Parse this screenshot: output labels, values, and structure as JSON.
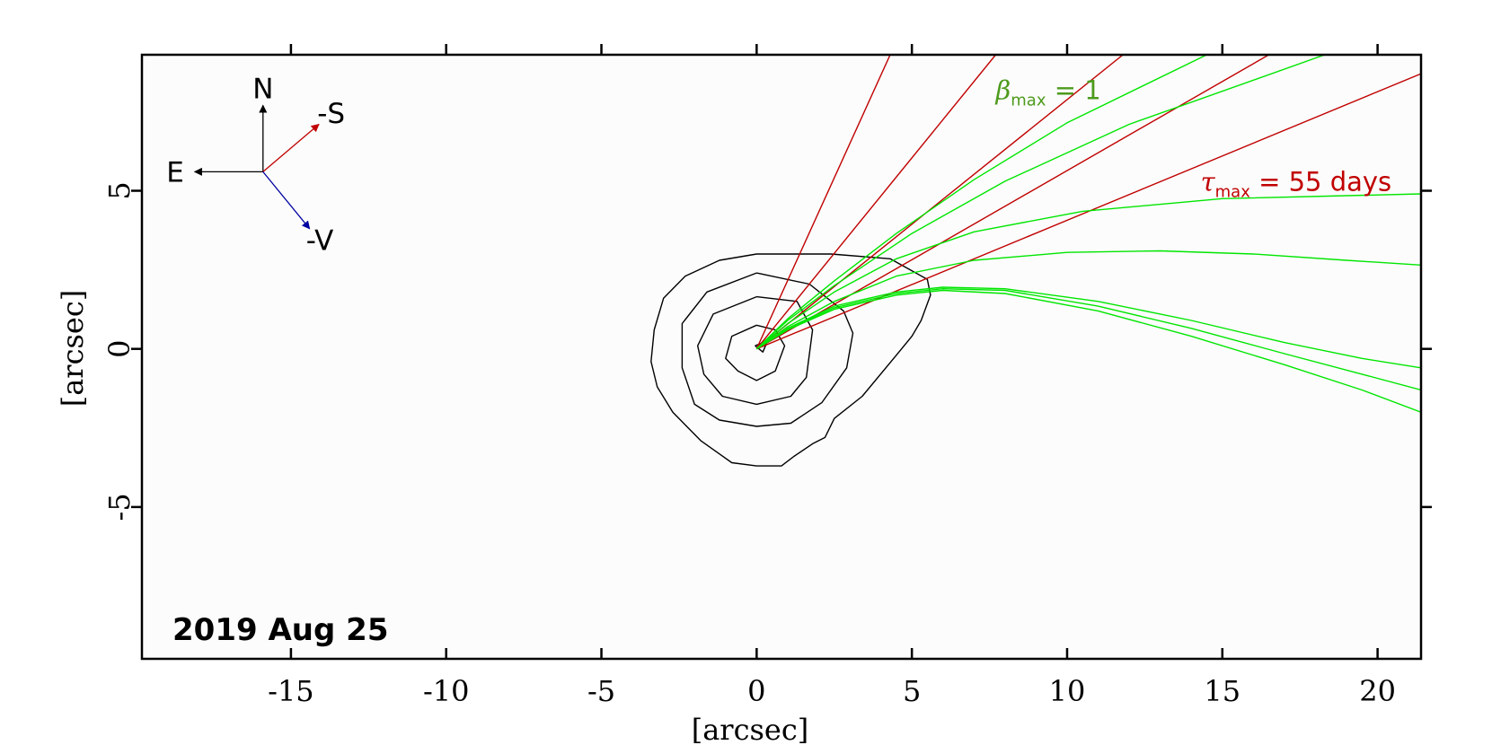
{
  "chart_data": {
    "type": "line",
    "xlabel": "[arcsec]",
    "ylabel": "[arcsec]",
    "xlim": [
      -19.8,
      21.4
    ],
    "ylim": [
      -9.8,
      9.3
    ],
    "x_ticks": [
      -15,
      -10,
      -5,
      0,
      5,
      10,
      15,
      20
    ],
    "y_ticks": [
      -5,
      0,
      5
    ],
    "x_tick_labels": [
      "-15",
      "-10",
      "-5",
      "0",
      "5",
      "10",
      "15",
      "20"
    ],
    "y_tick_labels": [
      "-5",
      "0",
      "5"
    ],
    "date_label": "2019 Aug 25",
    "grid": false,
    "compass": {
      "origin": [
        -15.9,
        5.6
      ],
      "arrows": [
        {
          "label": "N",
          "dx": 0,
          "dy": 2.1,
          "color": "#000000"
        },
        {
          "label": "E",
          "dx": -2.2,
          "dy": 0,
          "color": "#000000"
        },
        {
          "label": "-S",
          "dx": 1.8,
          "dy": 1.5,
          "color": "#c00000"
        },
        {
          "label": "-V",
          "dx": 1.5,
          "dy": -1.8,
          "color": "#0000a0"
        }
      ]
    },
    "annotations": {
      "beta": {
        "symbol": "β",
        "sub": "max",
        "text": "= 1",
        "color": "#4d9a1c",
        "x": 7.7,
        "y": 7.9
      },
      "tau": {
        "symbol": "τ",
        "sub": "max",
        "text": "= 55 days",
        "color": "#c00000",
        "x": 14.3,
        "y": 5.0
      }
    },
    "contours": [
      {
        "level": 1,
        "points": [
          [
            -0.05,
            0.1
          ],
          [
            0.35,
            0.25
          ],
          [
            0.2,
            -0.1
          ],
          [
            -0.05,
            0.1
          ]
        ]
      },
      {
        "level": 2,
        "points": [
          [
            0,
            0.75
          ],
          [
            0.6,
            0.6
          ],
          [
            0.9,
            0.1
          ],
          [
            0.6,
            -0.7
          ],
          [
            0,
            -1.0
          ],
          [
            -0.6,
            -0.7
          ],
          [
            -1.0,
            -0.3
          ],
          [
            -0.8,
            0.4
          ],
          [
            0,
            0.75
          ]
        ]
      },
      {
        "level": 3,
        "points": [
          [
            0,
            1.65
          ],
          [
            1.3,
            1.5
          ],
          [
            1.8,
            0.6
          ],
          [
            1.6,
            -0.9
          ],
          [
            1.1,
            -1.5
          ],
          [
            0,
            -1.75
          ],
          [
            -1.1,
            -1.5
          ],
          [
            -1.7,
            -0.8
          ],
          [
            -1.9,
            0.1
          ],
          [
            -1.4,
            1.1
          ],
          [
            0,
            1.65
          ]
        ]
      },
      {
        "level": 4,
        "points": [
          [
            0,
            2.4
          ],
          [
            1.7,
            2.05
          ],
          [
            2.8,
            1.2
          ],
          [
            3.1,
            0.5
          ],
          [
            2.9,
            -0.6
          ],
          [
            2.1,
            -1.7
          ],
          [
            1.1,
            -2.35
          ],
          [
            0,
            -2.45
          ],
          [
            -1.2,
            -2.25
          ],
          [
            -2.0,
            -1.75
          ],
          [
            -2.4,
            -0.6
          ],
          [
            -2.4,
            0.8
          ],
          [
            -1.6,
            1.8
          ],
          [
            0,
            2.4
          ]
        ]
      },
      {
        "level": 5,
        "points": [
          [
            0,
            3.0
          ],
          [
            2.4,
            3.0
          ],
          [
            4.3,
            2.85
          ],
          [
            5.5,
            2.2
          ],
          [
            5.6,
            1.7
          ],
          [
            5.3,
            0.9
          ],
          [
            5.0,
            0.4
          ],
          [
            4.5,
            -0.2
          ],
          [
            3.4,
            -1.5
          ],
          [
            2.5,
            -2.2
          ],
          [
            2.2,
            -2.8
          ],
          [
            1.8,
            -3.0
          ],
          [
            1.2,
            -3.4
          ],
          [
            0.8,
            -3.7
          ],
          [
            0,
            -3.7
          ],
          [
            -0.8,
            -3.6
          ],
          [
            -1.8,
            -2.9
          ],
          [
            -2.7,
            -2.0
          ],
          [
            -3.2,
            -1.2
          ],
          [
            -3.4,
            -0.4
          ],
          [
            -3.3,
            0.6
          ],
          [
            -3.0,
            1.6
          ],
          [
            -2.3,
            2.3
          ],
          [
            -1.2,
            2.8
          ],
          [
            0,
            3.0
          ]
        ]
      }
    ],
    "series": [
      {
        "kind": "synchrone",
        "color": "#c00000",
        "x": [
          0,
          4.3
        ],
        "y": [
          0,
          9.3
        ]
      },
      {
        "kind": "synchrone",
        "color": "#c00000",
        "x": [
          0,
          7.7
        ],
        "y": [
          0,
          9.3
        ]
      },
      {
        "kind": "synchrone",
        "color": "#c00000",
        "x": [
          0,
          11.8
        ],
        "y": [
          0,
          9.3
        ]
      },
      {
        "kind": "synchrone",
        "color": "#c00000",
        "x": [
          0,
          16.5
        ],
        "y": [
          0,
          9.3
        ]
      },
      {
        "kind": "synchrone",
        "color": "#c00000",
        "x": [
          0,
          21.4
        ],
        "y": [
          0,
          8.7
        ]
      },
      {
        "kind": "syndyne",
        "color": "#00e600",
        "x": [
          0,
          1.0,
          2.5,
          4.5,
          7.0,
          10.0,
          14.5
        ],
        "y": [
          0,
          0.95,
          2.15,
          3.65,
          5.35,
          7.15,
          9.3
        ]
      },
      {
        "kind": "syndyne",
        "color": "#00e600",
        "x": [
          0,
          1.0,
          2.5,
          5.0,
          8.0,
          12.0,
          18.3
        ],
        "y": [
          0,
          0.9,
          2.0,
          3.65,
          5.3,
          7.1,
          9.3
        ]
      },
      {
        "kind": "syndyne",
        "color": "#00e600",
        "x": [
          0,
          1.0,
          2.5,
          4.5,
          7.0,
          10.5,
          15.0,
          21.4
        ],
        "y": [
          0,
          0.8,
          1.8,
          2.85,
          3.7,
          4.35,
          4.75,
          4.9
        ]
      },
      {
        "kind": "syndyne",
        "color": "#00e600",
        "x": [
          0,
          1.0,
          2.5,
          4.5,
          7.0,
          10.0,
          13.0,
          16.0,
          19.0,
          21.4
        ],
        "y": [
          0,
          0.7,
          1.5,
          2.3,
          2.8,
          3.05,
          3.1,
          3.0,
          2.8,
          2.65
        ]
      },
      {
        "kind": "syndyne",
        "color": "#00e600",
        "x": [
          0,
          1.0,
          2.5,
          4.5,
          6.0,
          8.0,
          11.0,
          14.0,
          17.0,
          19.5,
          21.4
        ],
        "y": [
          0,
          0.65,
          1.35,
          1.8,
          1.95,
          1.9,
          1.5,
          0.9,
          0.2,
          -0.3,
          -0.6
        ]
      },
      {
        "kind": "syndyne",
        "color": "#00e600",
        "x": [
          0,
          1.0,
          2.5,
          4.5,
          6.0,
          8.0,
          11.0,
          14.0,
          17.0,
          19.5,
          21.4
        ],
        "y": [
          0,
          0.62,
          1.3,
          1.75,
          1.9,
          1.85,
          1.35,
          0.65,
          -0.15,
          -0.8,
          -1.3
        ]
      },
      {
        "kind": "syndyne",
        "color": "#00e600",
        "x": [
          0,
          1.0,
          2.5,
          4.5,
          6.0,
          8.0,
          11.0,
          14.0,
          17.0,
          19.5,
          21.4
        ],
        "y": [
          0,
          0.6,
          1.25,
          1.7,
          1.85,
          1.75,
          1.2,
          0.4,
          -0.5,
          -1.3,
          -2.0
        ]
      }
    ]
  }
}
